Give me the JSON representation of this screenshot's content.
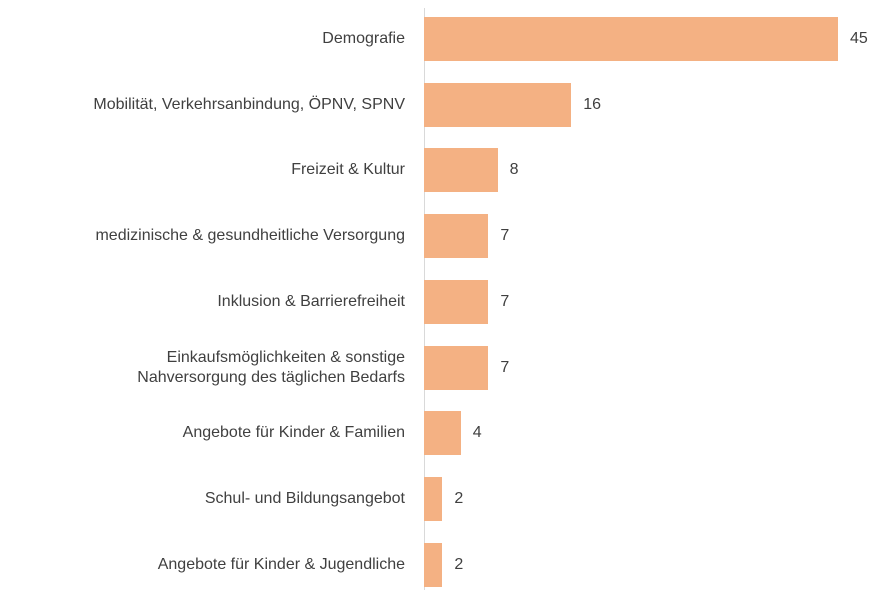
{
  "chart_data": {
    "type": "bar",
    "orientation": "horizontal",
    "color": "#f4b183",
    "categories": [
      "Demografie",
      "Mobilität, Verkehrsanbindung, ÖPNV, SPNV",
      "Freizeit & Kultur",
      "medizinische & gesundheitliche Versorgung",
      "Inklusion & Barrierefreiheit",
      "Einkaufsmöglichkeiten & sonstige\nNahversorgung des täglichen Bedarfs",
      "Angebote für Kinder & Familien",
      "Schul- und Bildungsangebot",
      "Angebote für Kinder & Jugendliche"
    ],
    "values": [
      45,
      16,
      8,
      7,
      7,
      7,
      4,
      2,
      2
    ]
  }
}
